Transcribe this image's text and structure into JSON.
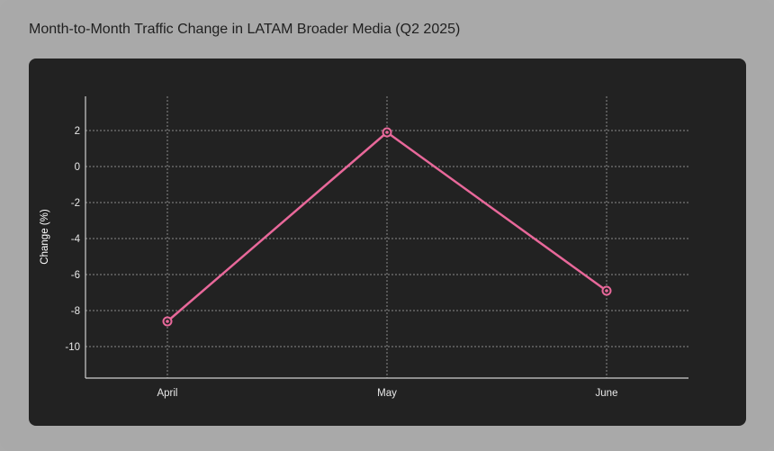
{
  "title": "Month-to-Month Traffic Change in LATAM Broader Media (Q2 2025)",
  "chart_data": {
    "type": "line",
    "title": "Month-to-Month Traffic Change in LATAM Broader Media (Q2 2025)",
    "xlabel": "",
    "ylabel": "Change (%)",
    "categories": [
      "April",
      "May",
      "June"
    ],
    "series": [
      {
        "values": [
          -8.6,
          1.9,
          -6.9
        ],
        "color": "#e8689a"
      }
    ],
    "yticks": [
      2,
      0,
      -2,
      -4,
      -6,
      -8,
      -10
    ],
    "ylim": [
      -12,
      4
    ],
    "grid": true,
    "legend": "none"
  },
  "colors": {
    "background": "#a9a9a9",
    "panel": "#222222",
    "line": "#e8689a",
    "grid": "#8a8a8a"
  }
}
